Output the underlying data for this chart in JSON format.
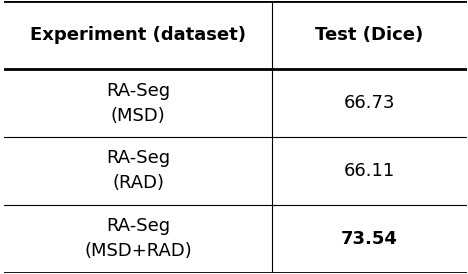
{
  "col_headers": [
    "Experiment (dataset)",
    "Test (Dice)"
  ],
  "rows": [
    {
      "experiment": "RA-Seg\n(MSD)",
      "dice": "66.73",
      "bold": false
    },
    {
      "experiment": "RA-Seg\n(RAD)",
      "dice": "66.11",
      "bold": false
    },
    {
      "experiment": "RA-Seg\n(MSD+RAD)",
      "dice": "73.54",
      "bold": true
    }
  ],
  "bg_color": "#ffffff",
  "text_color": "#000000",
  "header_fontsize": 13,
  "cell_fontsize": 13,
  "figsize": [
    4.68,
    2.74
  ],
  "dpi": 100,
  "col_split": 0.58,
  "thick_line": 2.0,
  "thin_line": 0.8
}
